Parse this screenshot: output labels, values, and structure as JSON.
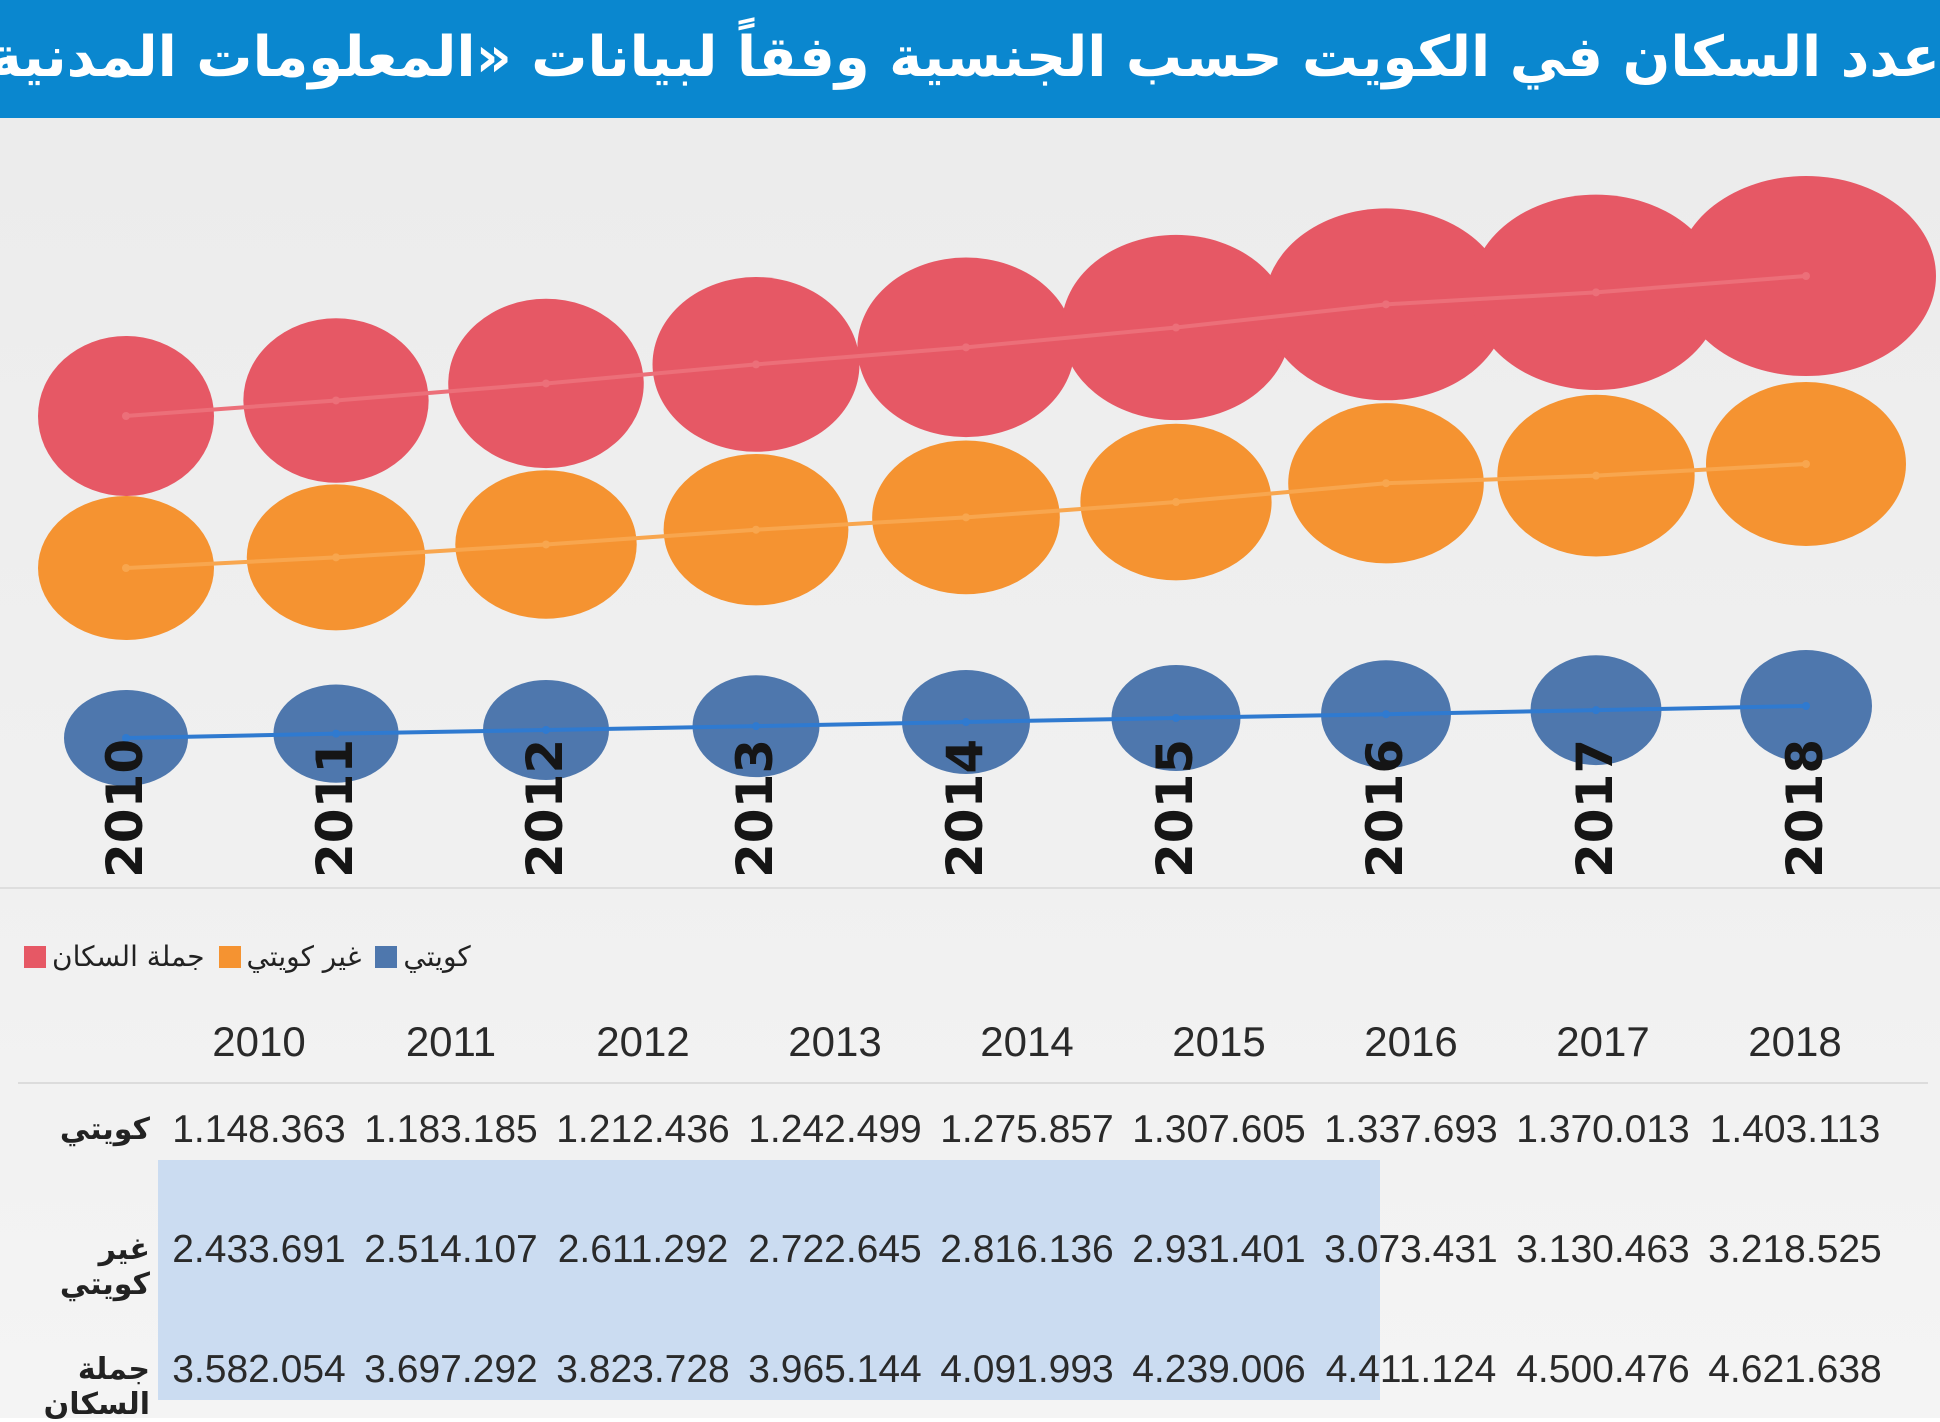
{
  "title": "عدد السكان في الكويت حسب الجنسية وفقاً لبيانات «المعلومات المدنية»",
  "legend": {
    "kuwaiti": "كويتي",
    "non_kuwaiti": "غير كويتي",
    "total": "جملة السكان"
  },
  "colors": {
    "header": "#0a87cf",
    "total": "#e65865",
    "non_kuwaiti": "#f59331",
    "kuwaiti": "#4e77ad",
    "table_highlight": "#cbdcf1"
  },
  "chart_data": {
    "type": "line",
    "title": "عدد السكان في الكويت حسب الجنسية وفقاً لبيانات «المعلومات المدنية»",
    "categories": [
      "2010",
      "2011",
      "2012",
      "2013",
      "2014",
      "2015",
      "2016",
      "2017",
      "2018"
    ],
    "series": [
      {
        "key": "total",
        "name": "جملة السكان",
        "values": [
          3582054,
          3697292,
          3823728,
          3965144,
          4091993,
          4239006,
          4411124,
          4500476,
          4621638
        ]
      },
      {
        "key": "non_kuwaiti",
        "name": "غير كويتي",
        "values": [
          2433691,
          2514107,
          2611292,
          2722645,
          2816136,
          2931401,
          3073431,
          3130463,
          3218525
        ]
      },
      {
        "key": "kuwaiti",
        "name": "كويتي",
        "values": [
          1148363,
          1183185,
          1212436,
          1242499,
          1275857,
          1307605,
          1337693,
          1370013,
          1403113
        ]
      }
    ],
    "legend_position": "bottom-left"
  },
  "table": {
    "years": [
      "2010",
      "2011",
      "2012",
      "2013",
      "2014",
      "2015",
      "2016",
      "2017",
      "2018"
    ],
    "rows": [
      {
        "key": "kuwaiti",
        "label": "كويتي",
        "values": [
          "1.148.363",
          "1.183.185",
          "1.212.436",
          "1.242.499",
          "1.275.857",
          "1.307.605",
          "1.337.693",
          "1.370.013",
          "1.403.113"
        ]
      },
      {
        "key": "non_kuwaiti",
        "label": "غير كويتي",
        "values": [
          "2.433.691",
          "2.514.107",
          "2.611.292",
          "2.722.645",
          "2.816.136",
          "2.931.401",
          "3.073.431",
          "3.130.463",
          "3.218.525"
        ]
      },
      {
        "key": "total",
        "label": "جملة السكان",
        "values": [
          "3.582.054",
          "3.697.292",
          "3.823.728",
          "3.965.144",
          "4.091.993",
          "4.239.006",
          "4.411.124",
          "4.500.476",
          "4.621.638"
        ]
      }
    ]
  }
}
